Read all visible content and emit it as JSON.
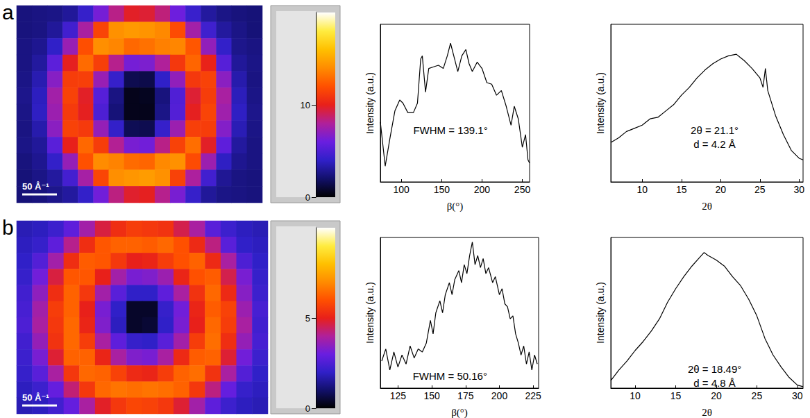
{
  "chart_data": [
    {
      "type": "heatmap",
      "panel": "a",
      "scale_bar": "50 Å⁻¹",
      "colorbar": {
        "range": [
          0,
          20
        ],
        "ticks": [
          0,
          10
        ]
      },
      "values": [
        [
          2.4,
          2.5,
          2.6,
          3.0,
          4.2,
          6.3,
          8.3,
          9.8,
          9.6,
          8.5,
          6.1,
          4.3,
          3.1,
          2.6,
          2.4,
          2.3
        ],
        [
          2.4,
          2.5,
          3.0,
          4.6,
          7.8,
          11.5,
          14.2,
          14.5,
          14.3,
          13.9,
          11.8,
          7.6,
          4.5,
          3.1,
          2.6,
          2.3
        ],
        [
          2.5,
          2.8,
          4.0,
          7.3,
          11.9,
          14.1,
          13.8,
          12.8,
          13.1,
          13.6,
          13.8,
          12.2,
          7.1,
          4.1,
          2.7,
          2.5
        ],
        [
          2.5,
          3.1,
          5.5,
          9.9,
          12.9,
          11.3,
          8.2,
          6.3,
          6.5,
          8.0,
          11.0,
          12.7,
          10.1,
          5.3,
          3.0,
          2.6
        ],
        [
          2.6,
          3.5,
          6.8,
          11.2,
          11.3,
          7.3,
          4.2,
          1.5,
          1.4,
          4.0,
          7.1,
          11.0,
          11.4,
          6.9,
          3.4,
          2.5
        ],
        [
          2.7,
          3.8,
          7.6,
          11.4,
          9.8,
          5.3,
          2.5,
          0.5,
          0.6,
          2.4,
          5.1,
          9.6,
          11.2,
          7.8,
          3.7,
          2.6
        ],
        [
          2.6,
          3.9,
          7.4,
          11.1,
          9.9,
          5.0,
          2.3,
          0.5,
          0.5,
          2.6,
          5.2,
          9.9,
          11.5,
          7.5,
          3.9,
          2.7
        ],
        [
          2.5,
          3.4,
          6.9,
          11.4,
          11.1,
          7.2,
          4.1,
          1.6,
          1.5,
          4.2,
          7.4,
          11.3,
          11.2,
          6.7,
          3.6,
          2.6
        ],
        [
          2.6,
          3.0,
          5.4,
          10.0,
          12.8,
          11.2,
          8.1,
          6.4,
          6.2,
          8.3,
          11.4,
          13.0,
          9.8,
          5.6,
          3.1,
          2.5
        ],
        [
          2.4,
          2.8,
          4.1,
          7.2,
          12.0,
          14.0,
          13.7,
          12.9,
          12.7,
          13.9,
          14.2,
          11.8,
          7.4,
          3.9,
          2.8,
          2.5
        ],
        [
          2.3,
          2.6,
          3.1,
          4.7,
          7.7,
          11.6,
          14.1,
          14.4,
          14.6,
          14.2,
          11.4,
          7.9,
          4.6,
          2.9,
          2.5,
          2.4
        ],
        [
          2.3,
          2.4,
          2.7,
          3.1,
          4.1,
          6.2,
          8.4,
          9.7,
          9.9,
          8.2,
          6.4,
          4.2,
          3.0,
          2.6,
          2.5,
          2.4
        ]
      ]
    },
    {
      "type": "line",
      "x_label": "β(°)",
      "y_label": "Intensity (a.u.)",
      "color": "#000000",
      "tick_labels": "x",
      "annotations": [
        "FWHM = 139.1°"
      ],
      "xlim": [
        74,
        259
      ],
      "xticks": [
        100,
        150,
        200,
        250
      ],
      "ylim": [
        0,
        1
      ],
      "x": [
        74,
        80,
        86,
        92,
        98,
        102,
        108,
        115,
        120,
        124,
        126,
        130,
        134,
        140,
        146,
        152,
        157,
        161,
        166,
        170,
        175,
        180,
        184,
        188,
        194,
        200,
        206,
        212,
        218,
        224,
        230,
        236,
        240,
        245,
        250,
        254,
        257,
        259
      ],
      "values": [
        0.38,
        0.1,
        0.28,
        0.45,
        0.52,
        0.5,
        0.44,
        0.44,
        0.5,
        0.78,
        0.8,
        0.57,
        0.72,
        0.73,
        0.74,
        0.72,
        0.8,
        0.88,
        0.78,
        0.7,
        0.8,
        0.84,
        0.75,
        0.7,
        0.76,
        0.72,
        0.63,
        0.62,
        0.55,
        0.58,
        0.48,
        0.36,
        0.48,
        0.4,
        0.22,
        0.3,
        0.14,
        0.12
      ]
    },
    {
      "type": "line",
      "x_label": "2θ",
      "y_label": "Intensity (a.u.)",
      "color": "#000000",
      "tick_labels": "x",
      "annotations": [
        "2θ = 21.1°",
        "d = 4.2 Å"
      ],
      "xlim": [
        6,
        30.5
      ],
      "xticks": [
        10,
        15,
        20,
        25,
        30
      ],
      "ylim": [
        0,
        1
      ],
      "x": [
        6,
        7,
        8,
        9,
        10,
        11,
        12,
        13,
        14,
        15,
        16,
        17,
        18,
        19,
        20,
        21,
        22,
        22.5,
        23,
        24,
        25,
        25.4,
        25.7,
        26,
        27,
        28,
        29,
        30,
        30.5
      ],
      "values": [
        0.25,
        0.28,
        0.32,
        0.34,
        0.36,
        0.4,
        0.41,
        0.45,
        0.49,
        0.55,
        0.6,
        0.66,
        0.71,
        0.75,
        0.78,
        0.8,
        0.81,
        0.79,
        0.77,
        0.72,
        0.66,
        0.6,
        0.72,
        0.58,
        0.42,
        0.3,
        0.2,
        0.15,
        0.14
      ]
    },
    {
      "type": "heatmap",
      "panel": "b",
      "scale_bar": "50 Å⁻¹",
      "colorbar": {
        "range": [
          0,
          10
        ],
        "ticks": [
          0,
          5
        ]
      },
      "values": [
        [
          1.8,
          1.9,
          2.2,
          2.8,
          3.8,
          4.7,
          5.3,
          5.6,
          5.5,
          5.4,
          4.6,
          3.9,
          2.7,
          2.2,
          1.9,
          1.8
        ],
        [
          1.9,
          2.1,
          2.8,
          4.1,
          5.3,
          6.1,
          6.3,
          6.3,
          6.2,
          6.4,
          6.0,
          5.2,
          4.2,
          2.7,
          2.0,
          1.9
        ],
        [
          2.0,
          2.6,
          3.8,
          5.3,
          6.2,
          6.1,
          5.5,
          5.0,
          5.1,
          5.6,
          6.0,
          6.3,
          5.2,
          3.9,
          2.5,
          2.0
        ],
        [
          2.1,
          3.1,
          4.7,
          6.1,
          6.1,
          5.0,
          3.8,
          3.2,
          3.3,
          3.7,
          5.1,
          6.0,
          6.2,
          4.6,
          3.2,
          2.1
        ],
        [
          2.3,
          3.5,
          5.3,
          6.3,
          5.5,
          3.8,
          2.7,
          2.0,
          2.0,
          2.8,
          3.9,
          5.4,
          6.4,
          5.2,
          3.4,
          2.2
        ],
        [
          2.4,
          3.8,
          5.6,
          6.3,
          5.0,
          3.2,
          2.0,
          0.4,
          0.4,
          2.1,
          3.1,
          5.1,
          6.2,
          5.7,
          3.7,
          2.4
        ],
        [
          2.5,
          3.9,
          5.5,
          6.4,
          5.1,
          3.3,
          1.9,
          0.4,
          0.5,
          2.0,
          3.2,
          5.0,
          6.4,
          5.6,
          3.9,
          2.3
        ],
        [
          2.3,
          3.6,
          5.4,
          6.4,
          5.6,
          3.9,
          2.8,
          2.1,
          2.0,
          2.7,
          3.8,
          5.6,
          6.5,
          5.3,
          3.6,
          2.4
        ],
        [
          2.2,
          3.2,
          4.8,
          6.3,
          6.3,
          5.1,
          3.9,
          3.3,
          3.2,
          3.9,
          5.2,
          6.2,
          6.3,
          4.8,
          3.1,
          2.2
        ],
        [
          2.1,
          2.7,
          3.9,
          5.5,
          6.4,
          6.3,
          5.7,
          5.2,
          5.1,
          5.6,
          6.3,
          6.5,
          5.4,
          3.9,
          2.6,
          2.0
        ],
        [
          1.9,
          2.2,
          2.9,
          4.3,
          5.5,
          6.4,
          6.6,
          6.5,
          6.6,
          6.5,
          6.3,
          5.5,
          4.2,
          2.9,
          2.1,
          1.9
        ],
        [
          1.8,
          1.9,
          2.3,
          2.9,
          3.9,
          4.9,
          5.5,
          5.8,
          5.7,
          5.5,
          4.8,
          3.8,
          2.8,
          2.2,
          1.9,
          1.8
        ]
      ]
    },
    {
      "type": "line",
      "x_label": "β(°)",
      "y_label": "Intensity (a.u.)",
      "color": "#000000",
      "tick_labels": "x",
      "annotations": [
        "FWHM = 50.16°"
      ],
      "xlim": [
        112,
        229
      ],
      "xticks": [
        125,
        150,
        175,
        200,
        225
      ],
      "ylim": [
        0,
        1
      ],
      "x": [
        113,
        116,
        119,
        122,
        125,
        128,
        131,
        134,
        137,
        140,
        143,
        146,
        149,
        151,
        153,
        156,
        158,
        160,
        163,
        165,
        167,
        170,
        172,
        174,
        176,
        178,
        180,
        182,
        184,
        186,
        188,
        190,
        192,
        195,
        197,
        200,
        202,
        204,
        206,
        208,
        210,
        212,
        214,
        216,
        218,
        220,
        222,
        224,
        226,
        228
      ],
      "values": [
        0.18,
        0.26,
        0.12,
        0.24,
        0.14,
        0.22,
        0.16,
        0.28,
        0.2,
        0.26,
        0.24,
        0.3,
        0.45,
        0.36,
        0.5,
        0.58,
        0.5,
        0.62,
        0.7,
        0.62,
        0.72,
        0.78,
        0.7,
        0.82,
        0.76,
        0.88,
        0.97,
        0.82,
        0.88,
        0.8,
        0.86,
        0.76,
        0.8,
        0.7,
        0.74,
        0.62,
        0.66,
        0.56,
        0.54,
        0.46,
        0.48,
        0.36,
        0.3,
        0.22,
        0.28,
        0.16,
        0.24,
        0.12,
        0.22,
        0.16
      ]
    },
    {
      "type": "line",
      "x_label": "2θ",
      "y_label": "Intensity (a.u.)",
      "color": "#000000",
      "tick_labels": "x",
      "annotations": [
        "2θ = 18.49°",
        "d = 4.8 Å"
      ],
      "xlim": [
        7,
        30.7
      ],
      "xticks": [
        10,
        15,
        20,
        25,
        30
      ],
      "ylim": [
        0,
        1
      ],
      "x": [
        7,
        8,
        9,
        10,
        11,
        12,
        13,
        14,
        15,
        16,
        17,
        18,
        18.5,
        19,
        20,
        21,
        22,
        23,
        24,
        25,
        26,
        27,
        28,
        29,
        30,
        30.7
      ],
      "values": [
        0.05,
        0.12,
        0.18,
        0.25,
        0.31,
        0.38,
        0.46,
        0.57,
        0.66,
        0.74,
        0.81,
        0.87,
        0.9,
        0.88,
        0.85,
        0.81,
        0.74,
        0.68,
        0.59,
        0.48,
        0.33,
        0.22,
        0.14,
        0.07,
        0.02,
        0.01
      ]
    }
  ]
}
